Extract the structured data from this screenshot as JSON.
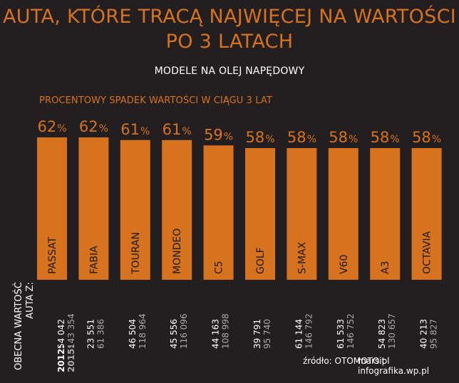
{
  "title_line1": "AUTA, KTÓRE TRACĄ NAJWIĘCEJ NA WARTOŚCI",
  "title_line2": "PO 3 LATACH",
  "subtitle": "MODELE NA OLEJ NAPĘDOWY",
  "chart_header": "PROCENTOWY SPADEK WARTOŚCI W CIĄGU 3 LAT",
  "value_axis_caption_line1": "OBECNA WARTOŚĆ",
  "value_axis_caption_line2": "AUTA Z:",
  "year_labels": {
    "y2012": "2012:",
    "y2015": "2015:"
  },
  "source": "źródło: OTOMOTO.pl",
  "credit": "marsit infografika.wp.pl",
  "colors": {
    "background": "#231f20",
    "bar": "#d7721e",
    "accent_text": "#d7721e",
    "primary_text": "#ffffff",
    "secondary_text": "#a7a9ac"
  },
  "chart_data": {
    "type": "bar",
    "title": "PROCENTOWY SPADEK WARTOŚCI W CIĄGU 3 LAT",
    "unit": "%",
    "categories": [
      "PASSAT",
      "FABIA",
      "TOURAN",
      "MONDEO",
      "C5",
      "GOLF",
      "S-MAX",
      "V60",
      "A3",
      "OCTAVIA"
    ],
    "values": [
      62,
      62,
      61,
      61,
      59,
      58,
      58,
      58,
      58,
      58
    ],
    "value_2012": [
      "54 042",
      "23 551",
      "46 504",
      "45 556",
      "44 163",
      "39 791",
      "61 144",
      "61 533",
      "54 823",
      "40 213"
    ],
    "value_2015": [
      "143 354",
      "61 386",
      "118 964",
      "116 096",
      "108 998",
      "95 740",
      "146 792",
      "146 752",
      "130 657",
      "95 827"
    ],
    "grid": false,
    "legend": "none"
  }
}
